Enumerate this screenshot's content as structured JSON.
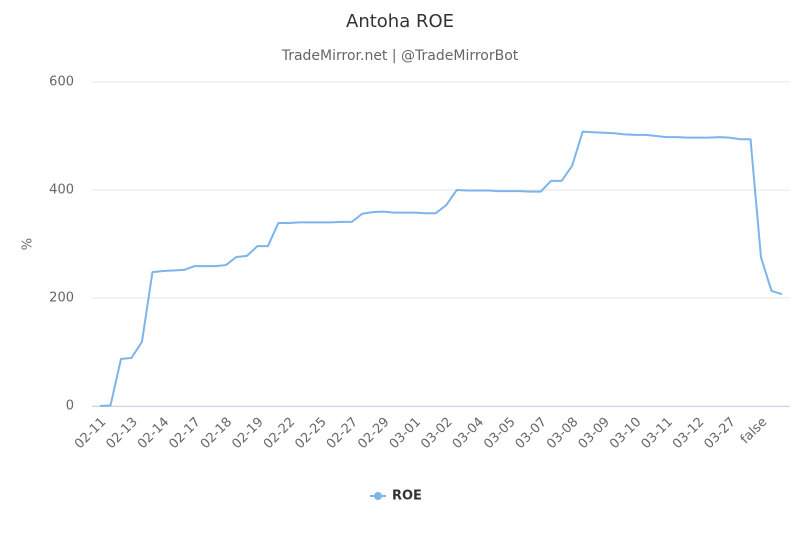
{
  "chart_data": {
    "type": "line",
    "title": "Antoha ROE",
    "subtitle": "TradeMirror.net | @TradeMirrorBot",
    "y_label": "%",
    "categories": [
      "02-11",
      null,
      null,
      "02-13",
      null,
      null,
      "02-14",
      null,
      null,
      "02-17",
      null,
      null,
      "02-18",
      null,
      null,
      "02-19",
      null,
      null,
      "02-22",
      null,
      null,
      "02-25",
      null,
      null,
      "02-27",
      null,
      null,
      "02-29",
      null,
      null,
      "03-01",
      null,
      null,
      "03-02",
      null,
      null,
      "03-04",
      null,
      null,
      "03-05",
      null,
      null,
      "03-07",
      null,
      null,
      "03-08",
      null,
      null,
      "03-09",
      null,
      null,
      "03-10",
      null,
      null,
      "03-11",
      null,
      null,
      "03-12",
      null,
      null,
      "03-27",
      null,
      null,
      "false",
      null,
      null
    ],
    "series": [
      {
        "name": "ROE",
        "color": "#7cb5ec",
        "values": [
          0,
          1,
          87,
          89,
          119,
          248,
          250,
          251,
          252,
          259,
          259,
          259,
          261,
          276,
          278,
          296,
          296,
          339,
          339,
          340,
          340,
          340,
          340,
          341,
          341,
          356,
          359,
          360,
          358,
          358,
          358,
          357,
          357,
          372,
          400,
          399,
          399,
          399,
          398,
          398,
          398,
          397,
          397,
          417,
          417,
          445,
          508,
          507,
          506,
          505,
          503,
          502,
          502,
          500,
          498,
          498,
          497,
          497,
          497,
          498,
          497,
          494,
          494,
          275,
          213,
          207
        ]
      }
    ],
    "ylim": [
      0,
      600
    ],
    "yticks": [
      0,
      200,
      400,
      600
    ],
    "grid": true,
    "legend": "bottom"
  }
}
